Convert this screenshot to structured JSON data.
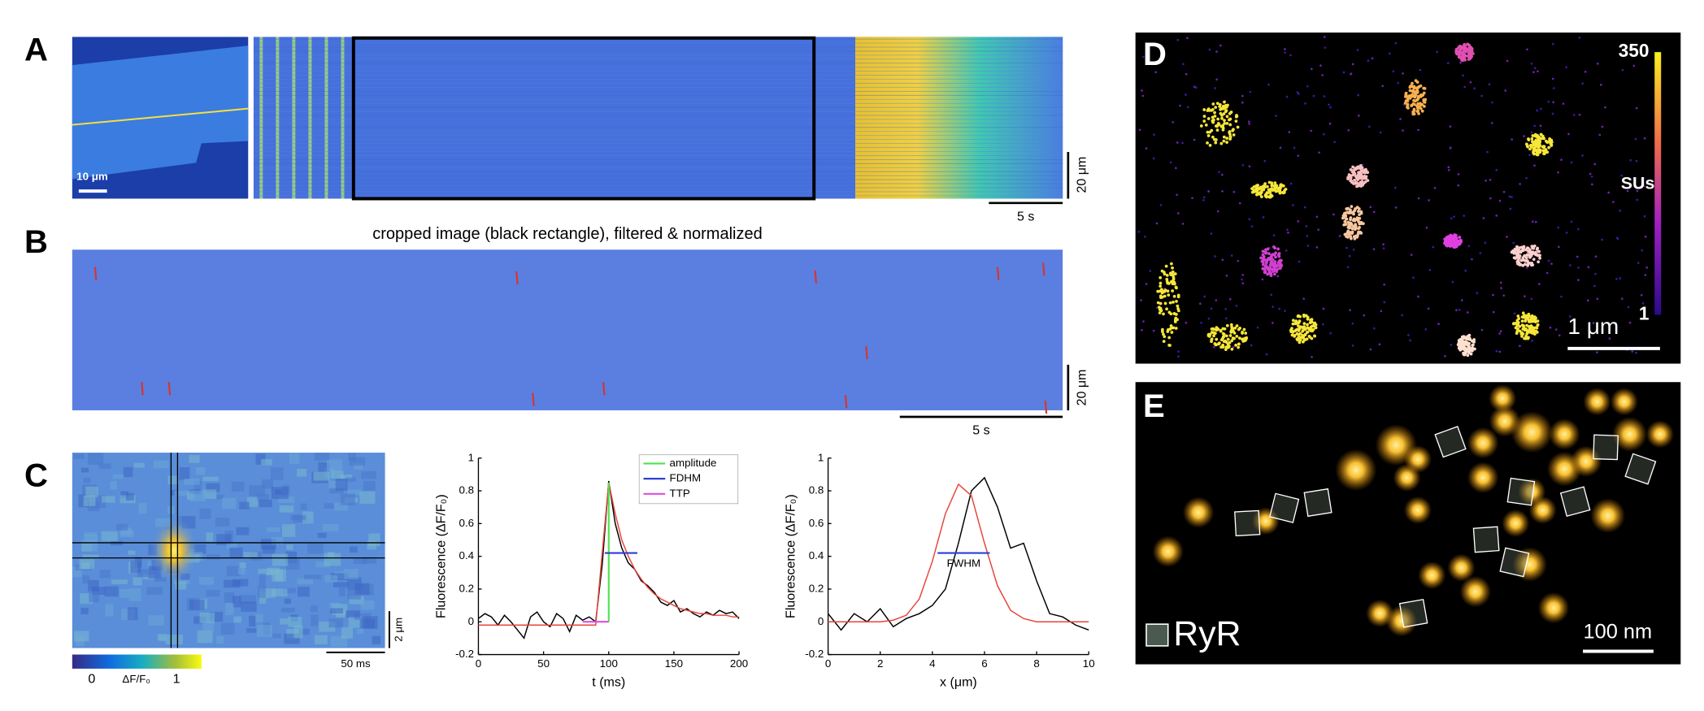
{
  "figure": {
    "panel_a": {
      "label": "A",
      "scale_cell": "10 μm",
      "scale_y": "20 μm",
      "scale_t": "5 s"
    },
    "panel_b": {
      "label": "B",
      "title": "cropped image (black rectangle), filtered & normalized",
      "scale_y": "20 μm",
      "scale_t": "5 s"
    },
    "panel_c": {
      "label": "C",
      "colorbar_label": "ΔF/F₀",
      "colorbar_ticks": [
        0,
        1
      ],
      "scale_y": "2 μm",
      "scale_t": "50 ms"
    },
    "panel_d": {
      "label": "D",
      "colorbar_ticks": [
        1,
        350
      ],
      "colorbar_label": "SUs",
      "scale": "1 μm"
    },
    "panel_e": {
      "label": "E",
      "legend": "RyR",
      "scale": "100 nm"
    }
  },
  "chart_data": [
    {
      "type": "line",
      "xlabel": "t (ms)",
      "ylabel": "Fluorescence (ΔF/F₀)",
      "xlim": [
        0,
        200
      ],
      "ylim": [
        -0.2,
        1
      ],
      "xticks": [
        0,
        50,
        100,
        150,
        200
      ],
      "yticks": [
        -0.2,
        0,
        0.2,
        0.4,
        0.6,
        0.8,
        1
      ],
      "legend": true,
      "series": [
        {
          "color": "#000000",
          "x": [
            0,
            5,
            10,
            15,
            20,
            25,
            30,
            35,
            40,
            45,
            50,
            55,
            60,
            65,
            70,
            75,
            80,
            85,
            90,
            95,
            100,
            105,
            110,
            115,
            120,
            125,
            130,
            135,
            140,
            145,
            150,
            155,
            160,
            165,
            170,
            175,
            180,
            185,
            190,
            195,
            200
          ],
          "values": [
            0.02,
            0.05,
            0.03,
            -0.02,
            0.04,
            0.0,
            -0.05,
            -0.1,
            0.03,
            0.06,
            0.0,
            -0.03,
            0.05,
            0.02,
            -0.06,
            0.04,
            0.01,
            0.03,
            0.0,
            0.35,
            0.86,
            0.6,
            0.45,
            0.36,
            0.32,
            0.25,
            0.22,
            0.18,
            0.12,
            0.1,
            0.13,
            0.06,
            0.08,
            0.05,
            0.03,
            0.06,
            0.04,
            0.07,
            0.05,
            0.06,
            0.02
          ]
        },
        {
          "color": "#e8443a",
          "x": [
            0,
            5,
            10,
            15,
            20,
            25,
            30,
            35,
            40,
            45,
            50,
            55,
            60,
            65,
            70,
            75,
            80,
            85,
            90,
            95,
            100,
            105,
            110,
            115,
            120,
            125,
            130,
            135,
            140,
            145,
            150,
            155,
            160,
            165,
            170,
            175,
            180,
            185,
            190,
            195,
            200
          ],
          "values": [
            -0.02,
            -0.02,
            -0.02,
            -0.02,
            -0.02,
            -0.02,
            -0.02,
            -0.02,
            -0.02,
            -0.02,
            -0.02,
            -0.02,
            -0.02,
            -0.02,
            -0.02,
            -0.02,
            -0.02,
            -0.02,
            -0.02,
            0.42,
            0.85,
            0.66,
            0.5,
            0.4,
            0.32,
            0.26,
            0.21,
            0.17,
            0.14,
            0.12,
            0.1,
            0.08,
            0.07,
            0.06,
            0.05,
            0.05,
            0.04,
            0.04,
            0.04,
            0.03,
            0.03
          ]
        },
        {
          "name": "amplitude",
          "color": "#4ee24e",
          "x": [
            100,
            100
          ],
          "values": [
            0,
            0.85
          ]
        },
        {
          "name": "FDHM",
          "color": "#2b3fd6",
          "x": [
            97,
            122
          ],
          "values": [
            0.42,
            0.42
          ]
        },
        {
          "name": "TTP",
          "color": "#e04ee0",
          "x": [
            80,
            100
          ],
          "values": [
            0,
            0
          ]
        }
      ]
    },
    {
      "type": "line",
      "xlabel": "x (μm)",
      "ylabel": "Fluorescence (ΔF/F₀)",
      "xlim": [
        0,
        10
      ],
      "ylim": [
        -0.2,
        1
      ],
      "xticks": [
        0,
        2,
        4,
        6,
        8,
        10
      ],
      "yticks": [
        -0.2,
        0,
        0.2,
        0.4,
        0.6,
        0.8,
        1
      ],
      "legend": false,
      "series": [
        {
          "color": "#000000",
          "x": [
            0,
            0.5,
            1,
            1.5,
            2,
            2.5,
            3,
            3.5,
            4,
            4.5,
            5,
            5.5,
            6,
            6.5,
            7,
            7.5,
            8,
            8.5,
            9,
            9.5,
            10
          ],
          "values": [
            0.05,
            -0.05,
            0.05,
            0.0,
            0.08,
            -0.03,
            0.02,
            0.05,
            0.1,
            0.2,
            0.48,
            0.8,
            0.88,
            0.7,
            0.45,
            0.48,
            0.25,
            0.05,
            0.03,
            -0.02,
            -0.05
          ]
        },
        {
          "color": "#e8443a",
          "x": [
            0,
            0.5,
            1,
            1.5,
            2,
            2.5,
            3,
            3.5,
            4,
            4.5,
            5,
            5.5,
            6,
            6.5,
            7,
            7.5,
            8,
            8.5,
            9,
            9.5,
            10
          ],
          "values": [
            0,
            0,
            0,
            0,
            0,
            0.01,
            0.04,
            0.14,
            0.37,
            0.66,
            0.84,
            0.77,
            0.48,
            0.22,
            0.07,
            0.02,
            0,
            0,
            0,
            0,
            0
          ]
        },
        {
          "name": "FWHM",
          "color": "#2b3fd6",
          "x": [
            4.2,
            6.2
          ],
          "values": [
            0.42,
            0.42
          ]
        }
      ]
    }
  ]
}
